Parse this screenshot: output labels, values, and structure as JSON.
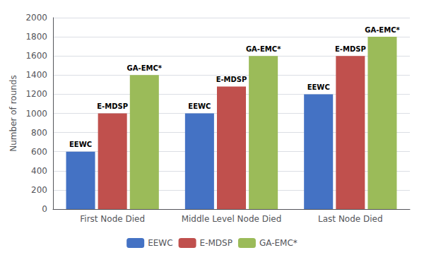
{
  "chart_data": {
    "type": "bar",
    "categories": [
      "First Node Died",
      "Middle Level Node Died",
      "Last Node Died"
    ],
    "series": [
      {
        "name": "EEWC",
        "color": "#4472C4",
        "values": [
          600,
          1000,
          1200
        ]
      },
      {
        "name": "E-MDSP",
        "color": "#C0504D",
        "values": [
          1000,
          1280,
          1600
        ]
      },
      {
        "name": "GA-EMC*",
        "color": "#9BBB59",
        "values": [
          1400,
          1600,
          1800
        ]
      }
    ],
    "ylabel": "Number of rounds",
    "ylim": [
      0,
      2000
    ],
    "yticks": [
      0,
      200,
      400,
      600,
      800,
      1000,
      1200,
      1400,
      1600,
      1800,
      2000
    ],
    "annotations": [
      {
        "text": "EEWC",
        "series": "EEWC",
        "category": "First Node Died"
      },
      {
        "text": "EEWC",
        "series": "EEWC",
        "category": "Middle Level Node Died"
      },
      {
        "text": "EEWC",
        "series": "EEWC",
        "category": "Last Node Died"
      },
      {
        "text": "E-MDSP",
        "series": "E-MDSP",
        "category": "First Node Died"
      },
      {
        "text": "E-MDSP",
        "series": "E-MDSP",
        "category": "Middle Level Node Died"
      },
      {
        "text": "E-MDSP",
        "series": "E-MDSP",
        "category": "Last Node Died"
      },
      {
        "text": "GA-EMC*",
        "series": "GA-EMC*",
        "category": "First Node Died"
      },
      {
        "text": "GA-EMC*",
        "series": "GA-EMC*",
        "category": "Middle Level Node Died"
      },
      {
        "text": "GA-EMC*",
        "series": "GA-EMC*",
        "category": "Last Node Died"
      }
    ],
    "grid": true,
    "legend": "bottom"
  }
}
